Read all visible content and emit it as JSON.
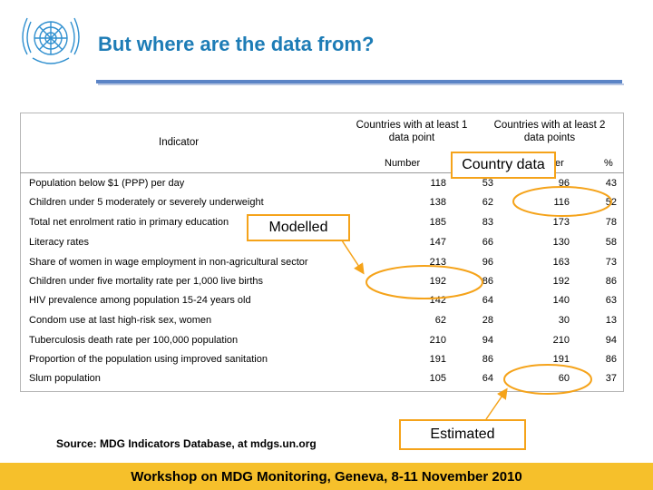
{
  "slide": {
    "title": "But where are the data from?",
    "logo_icon": "un-emblem-icon",
    "accent_color": "#1d7cb6",
    "highlight_color": "#f5a31a"
  },
  "table": {
    "header_indicator": "Indicator",
    "group1": "Countries with at least 1 data point",
    "group2": "Countries with at least 2 data points",
    "sub_number": "Number",
    "sub_number2_visible": "er",
    "sub_pct": "%",
    "rows": [
      {
        "indicator": "Population below $1 (PPP) per day",
        "n1": "118",
        "p1": "53",
        "n2": "96",
        "p2": "43"
      },
      {
        "indicator": "Children under 5 moderately or severely underweight",
        "n1": "138",
        "p1": "62",
        "n2": "116",
        "p2": "52"
      },
      {
        "indicator": "Total net enrolment ratio in primary education",
        "n1": "185",
        "p1": "83",
        "n2": "173",
        "p2": "78"
      },
      {
        "indicator": "Literacy rates",
        "n1": "147",
        "p1": "66",
        "n2": "130",
        "p2": "58"
      },
      {
        "indicator": "Share of women in wage employment in non-agricultural sector",
        "n1": "213",
        "p1": "96",
        "n2": "163",
        "p2": "73"
      },
      {
        "indicator": "Children under five mortality rate per 1,000 live births",
        "n1": "192",
        "p1": "86",
        "n2": "192",
        "p2": "86"
      },
      {
        "indicator": "HIV prevalence among population 15-24 years old",
        "n1": "142",
        "p1": "64",
        "n2": "140",
        "p2": "63"
      },
      {
        "indicator": "Condom use at last high-risk sex, women",
        "n1": "62",
        "p1": "28",
        "n2": "30",
        "p2": "13"
      },
      {
        "indicator": "Tuberculosis death rate per 100,000 population",
        "n1": "210",
        "p1": "94",
        "n2": "210",
        "p2": "94"
      },
      {
        "indicator": "Proportion of the population using improved sanitation",
        "n1": "191",
        "p1": "86",
        "n2": "191",
        "p2": "86"
      },
      {
        "indicator": "Slum population",
        "n1": "105",
        "p1": "64",
        "n2": "60",
        "p2": "37"
      }
    ]
  },
  "callouts": {
    "country": "Country data",
    "modelled": "Modelled",
    "estimated": "Estimated"
  },
  "source": "Source: MDG Indicators Database, at mdgs.un.org",
  "footer": "Workshop on MDG Monitoring, Geneva, 8-11 November 2010"
}
